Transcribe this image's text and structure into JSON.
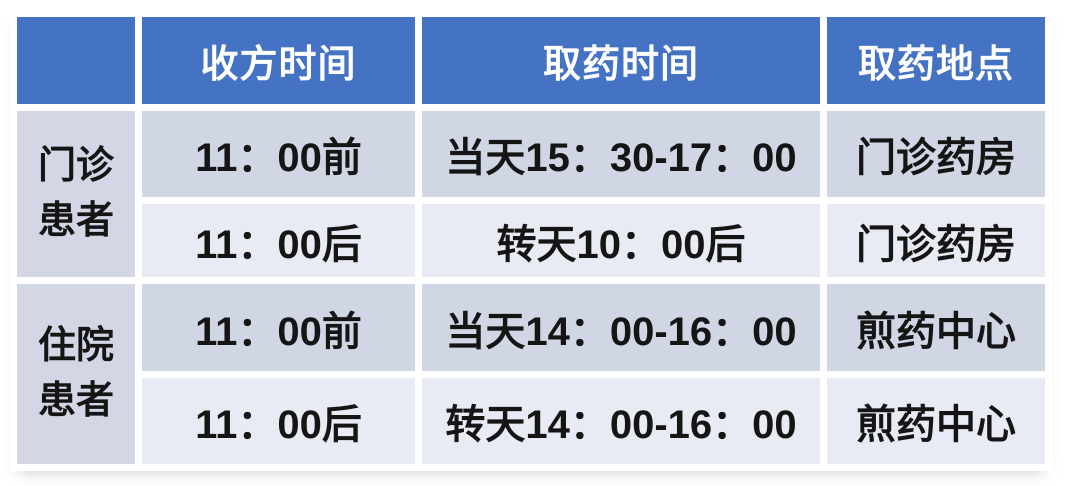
{
  "colors": {
    "page_bg": "#FFFFFF",
    "header_bg": "#4573C4",
    "header_text": "#FFFFFF",
    "row_dark_bg": "#D1D6E5",
    "row_light_bg": "#E9EBF4",
    "label_bg": "#D3D7E5",
    "body_text": "#151515"
  },
  "chart_data": {
    "type": "table",
    "columns": [
      "",
      "收方时间",
      "取药时间",
      "取药地点"
    ],
    "rows": [
      [
        "门诊患者",
        "11：00前",
        "当天15：30-17：00",
        "门诊药房"
      ],
      [
        "门诊患者",
        "11：00后",
        "转天10：00后",
        "门诊药房"
      ],
      [
        "住院患者",
        "11：00前",
        "当天14：00-16：00",
        "煎药中心"
      ],
      [
        "住院患者",
        "11：00后",
        "转天14：00-16：00",
        "煎药中心"
      ]
    ],
    "layout": {
      "row_group_spans": [
        {
          "label": "门诊患者",
          "rows": [
            0,
            1
          ]
        },
        {
          "label": "住院患者",
          "rows": [
            2,
            3
          ]
        }
      ],
      "banding": [
        "dark",
        "light",
        "dark",
        "light"
      ],
      "grid": "white-gutters",
      "header_position": "top"
    }
  }
}
